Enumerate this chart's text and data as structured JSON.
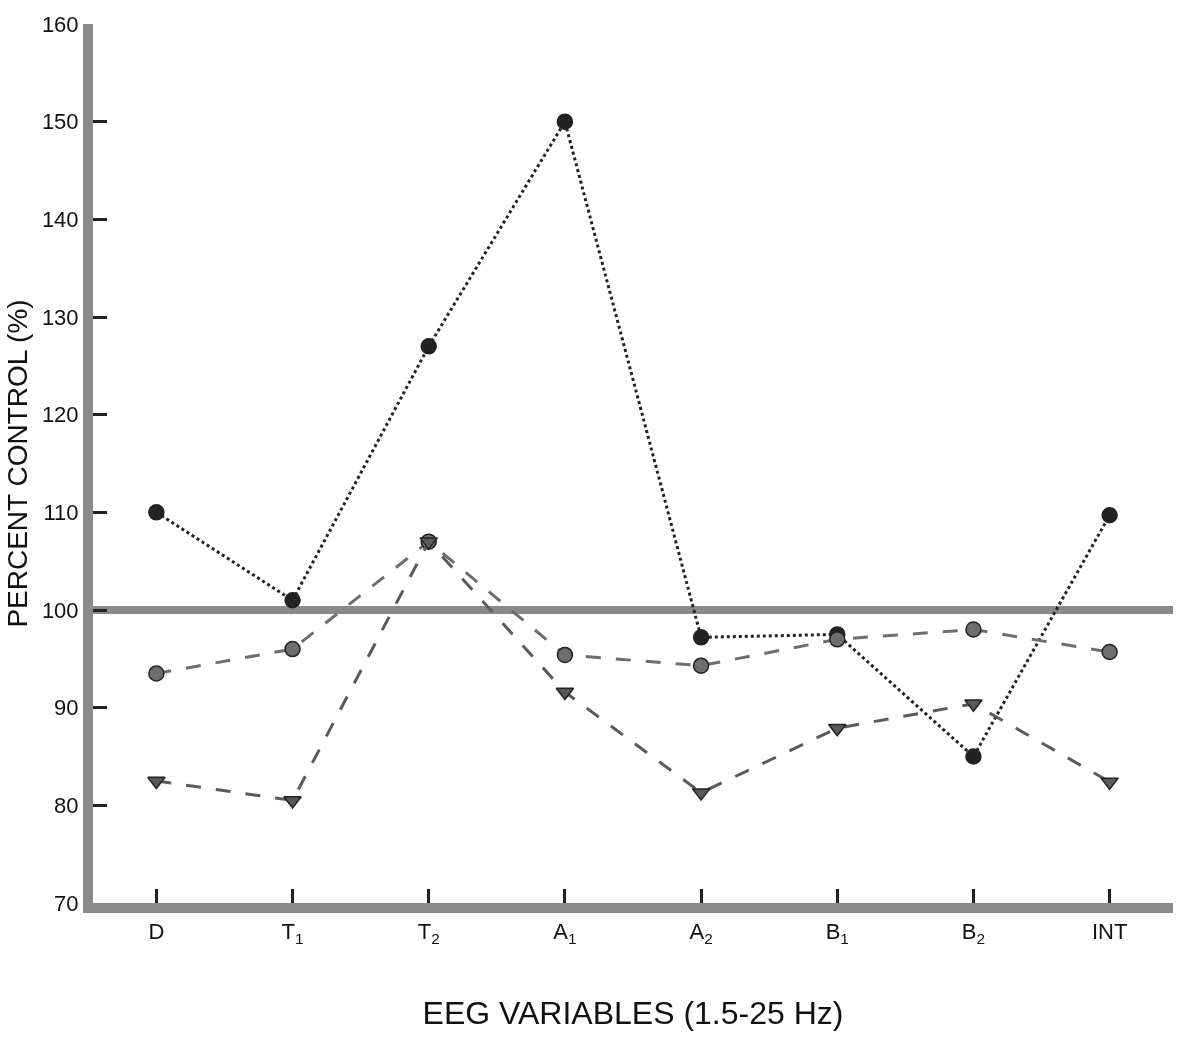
{
  "chart_data": {
    "type": "line",
    "xlabel": "EEG VARIABLES (1.5-25 Hz)",
    "ylabel": "PERCENT CONTROL (%)",
    "categories": [
      "D",
      "T$_{1}$",
      "T$_{2}$",
      "A$_{1}$",
      "A$_{2}$",
      "B$_{1}$",
      "B$_{2}$",
      "INT"
    ],
    "ylim": [
      70,
      160
    ],
    "yticks": [
      70,
      80,
      90,
      100,
      110,
      120,
      130,
      140,
      150,
      160
    ],
    "grid": false,
    "ref_lines": [
      {
        "axis": "y",
        "value": 100,
        "color": "#8a8a8a"
      }
    ],
    "series": [
      {
        "color": "#222222",
        "marker": "circle",
        "line_style": "dotted",
        "values": [
          110,
          101,
          127,
          150,
          97.2,
          97.5,
          85,
          109.7
        ]
      },
      {
        "color": "#6e6e6e",
        "marker": "circle",
        "line_style": "dashed",
        "values": [
          93.5,
          96,
          107,
          95.4,
          94.3,
          97,
          98,
          95.7
        ]
      },
      {
        "color": "#5a5a5a",
        "marker": "triangle",
        "line_style": "dashed",
        "values": [
          82.5,
          80.5,
          107,
          91.6,
          81.3,
          87.9,
          90.4,
          82.4
        ]
      }
    ]
  }
}
